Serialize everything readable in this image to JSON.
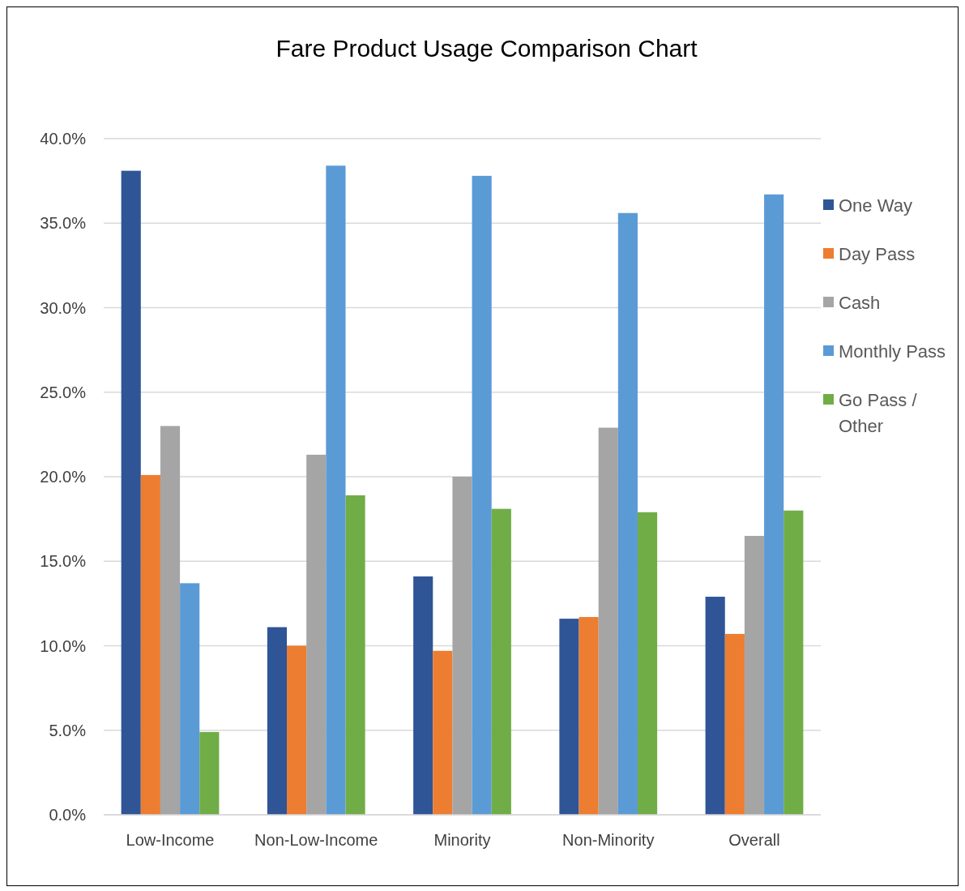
{
  "chart_data": {
    "type": "bar",
    "title": "Fare Product Usage Comparison Chart",
    "categories": [
      "Low-Income",
      "Non-Low-Income",
      "Minority",
      "Non-Minority",
      "Overall"
    ],
    "series": [
      {
        "name": "One Way",
        "color": "#2f5597",
        "values": [
          38.1,
          11.1,
          14.1,
          11.6,
          12.9
        ]
      },
      {
        "name": "Day Pass",
        "color": "#ed7d31",
        "values": [
          20.1,
          10.0,
          9.7,
          11.7,
          10.7
        ]
      },
      {
        "name": "Cash",
        "color": "#a5a5a5",
        "values": [
          23.0,
          21.3,
          20.0,
          22.9,
          16.5
        ]
      },
      {
        "name": "Monthly Pass",
        "color": "#5b9bd5",
        "values": [
          13.7,
          38.4,
          37.8,
          35.6,
          36.7
        ]
      },
      {
        "name": "Go Pass / Other",
        "color": "#70ad47",
        "values": [
          4.9,
          18.9,
          18.1,
          17.9,
          18.0
        ]
      }
    ],
    "ylim": [
      0,
      40
    ],
    "yticks": [
      {
        "value": 0,
        "label": "0.0%"
      },
      {
        "value": 5,
        "label": "5.0%"
      },
      {
        "value": 10,
        "label": "10.0%"
      },
      {
        "value": 15,
        "label": "15.0%"
      },
      {
        "value": 20,
        "label": "20.0%"
      },
      {
        "value": 25,
        "label": "25.0%"
      },
      {
        "value": 30,
        "label": "30.0%"
      },
      {
        "value": 35,
        "label": "35.0%"
      },
      {
        "value": 40,
        "label": "40.0%"
      }
    ],
    "grid": "y",
    "legend": "right"
  }
}
